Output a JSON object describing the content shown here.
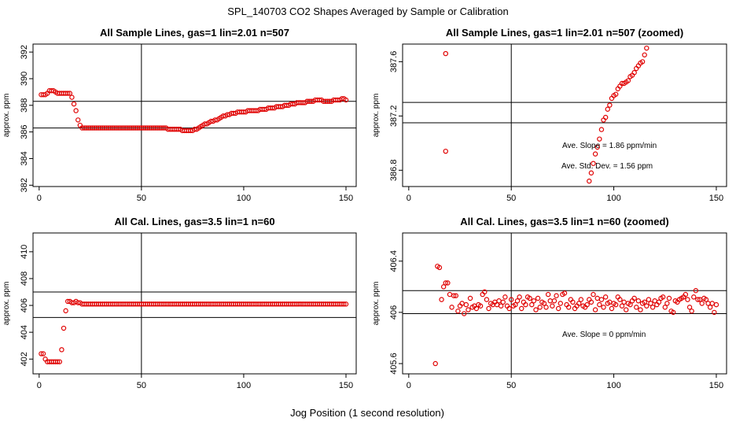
{
  "figure": {
    "suptitle": "SPL_140703  CO2 Shapes Averaged by Sample or Calibration",
    "xlabel": "Jog Position (1 second resolution)"
  },
  "colors": {
    "points": "#e00000",
    "axes": "#000000",
    "background": "#ffffff"
  },
  "chart_data": [
    {
      "type": "scatter",
      "title": "All Sample Lines, gas=1 lin=2.01 n=507",
      "ylabel": "approx. ppm",
      "xlim": [
        -3,
        155
      ],
      "ylim": [
        381.9,
        392.6
      ],
      "xticks": [
        0,
        50,
        100,
        150
      ],
      "yticks": [
        382,
        384,
        386,
        388,
        390,
        392
      ],
      "vline": 50,
      "hlines": [
        386.3,
        388.3
      ],
      "annotations": [],
      "x": [
        1,
        2,
        3,
        4,
        5,
        6,
        7,
        8,
        9,
        10,
        11,
        12,
        13,
        14,
        15,
        16,
        17,
        18,
        19,
        20,
        21,
        22,
        23,
        24,
        25,
        26,
        27,
        28,
        29,
        30,
        31,
        32,
        33,
        34,
        35,
        36,
        37,
        38,
        39,
        40,
        41,
        42,
        43,
        44,
        45,
        46,
        47,
        48,
        49,
        50,
        51,
        52,
        53,
        54,
        55,
        56,
        57,
        58,
        59,
        60,
        61,
        62,
        63,
        64,
        65,
        66,
        67,
        68,
        69,
        70,
        71,
        72,
        73,
        74,
        75,
        76,
        77,
        78,
        79,
        80,
        81,
        82,
        83,
        84,
        85,
        86,
        87,
        88,
        89,
        90,
        91,
        92,
        93,
        94,
        95,
        96,
        97,
        98,
        99,
        100,
        101,
        102,
        103,
        104,
        105,
        106,
        107,
        108,
        109,
        110,
        111,
        112,
        113,
        114,
        115,
        116,
        117,
        118,
        119,
        120,
        121,
        122,
        123,
        124,
        125,
        126,
        127,
        128,
        129,
        130,
        131,
        132,
        133,
        134,
        135,
        136,
        137,
        138,
        139,
        140,
        141,
        142,
        143,
        144,
        145,
        146,
        147,
        148,
        149,
        150
      ],
      "y": [
        388.8,
        388.8,
        388.8,
        388.9,
        389.1,
        389.1,
        389.1,
        389.0,
        388.9,
        388.9,
        388.9,
        388.9,
        388.9,
        388.9,
        388.9,
        388.6,
        388.1,
        387.6,
        386.9,
        386.5,
        386.3,
        386.3,
        386.3,
        386.3,
        386.3,
        386.3,
        386.3,
        386.3,
        386.3,
        386.3,
        386.3,
        386.3,
        386.3,
        386.3,
        386.3,
        386.3,
        386.3,
        386.3,
        386.3,
        386.3,
        386.3,
        386.3,
        386.3,
        386.3,
        386.3,
        386.3,
        386.3,
        386.3,
        386.3,
        386.3,
        386.3,
        386.3,
        386.3,
        386.3,
        386.3,
        386.3,
        386.3,
        386.3,
        386.3,
        386.3,
        386.3,
        386.3,
        386.2,
        386.2,
        386.2,
        386.2,
        386.2,
        386.2,
        386.2,
        386.1,
        386.1,
        386.1,
        386.1,
        386.1,
        386.1,
        386.2,
        386.2,
        386.3,
        386.4,
        386.5,
        386.6,
        386.6,
        386.7,
        386.8,
        386.8,
        386.9,
        386.9,
        387.0,
        387.1,
        387.2,
        387.2,
        387.3,
        387.3,
        387.4,
        387.4,
        387.4,
        387.5,
        387.5,
        387.5,
        387.5,
        387.5,
        387.6,
        387.6,
        387.6,
        387.6,
        387.6,
        387.6,
        387.7,
        387.7,
        387.7,
        387.7,
        387.8,
        387.8,
        387.8,
        387.8,
        387.9,
        387.9,
        387.9,
        387.9,
        388.0,
        388.0,
        388.0,
        388.1,
        388.1,
        388.1,
        388.2,
        388.2,
        388.2,
        388.2,
        388.2,
        388.3,
        388.3,
        388.3,
        388.3,
        388.4,
        388.4,
        388.4,
        388.4,
        388.3,
        388.3,
        388.3,
        388.3,
        388.3,
        388.4,
        388.4,
        388.4,
        388.4,
        388.5,
        388.5,
        388.4
      ]
    },
    {
      "type": "scatter",
      "title": "All Sample Lines, gas=1 lin=2.01 n=507 (zoomed)",
      "ylabel": "approx. ppm",
      "xlim": [
        -3,
        155
      ],
      "ylim": [
        386.68,
        387.73
      ],
      "xticks": [
        0,
        50,
        100,
        150
      ],
      "yticks": [
        386.8,
        387.2,
        387.6
      ],
      "vline": 50,
      "hlines": [
        387.3,
        387.15
      ],
      "annotations": [
        "Ave. Slope =  1.86  ppm/min",
        "Ave. Std. Dev. =  1.56  ppm"
      ],
      "x": [
        18,
        18,
        88,
        89,
        90,
        91,
        92,
        93,
        94,
        95,
        96,
        97,
        98,
        99,
        100,
        101,
        102,
        103,
        104,
        105,
        106,
        107,
        108,
        109,
        110,
        111,
        112,
        113,
        114,
        115,
        116
      ],
      "y": [
        387.66,
        386.94,
        386.72,
        386.78,
        386.85,
        386.92,
        386.97,
        387.03,
        387.1,
        387.17,
        387.19,
        387.25,
        387.28,
        387.33,
        387.35,
        387.36,
        387.4,
        387.42,
        387.44,
        387.44,
        387.45,
        387.46,
        387.49,
        387.5,
        387.52,
        387.55,
        387.57,
        387.59,
        387.6,
        387.65,
        387.7
      ]
    },
    {
      "type": "scatter",
      "title": "All Cal. Lines, gas=3.5 lin=1 n=60",
      "ylabel": "approx. ppm",
      "xlim": [
        -3,
        155
      ],
      "ylim": [
        400.9,
        411.4
      ],
      "xticks": [
        0,
        50,
        100,
        150
      ],
      "yticks": [
        402,
        404,
        406,
        408,
        410
      ],
      "vline": 50,
      "hlines": [
        407.0,
        405.1
      ],
      "annotations": [],
      "x": [
        1,
        2,
        3,
        4,
        5,
        6,
        7,
        8,
        9,
        10,
        11,
        12,
        13,
        14,
        15,
        16,
        17,
        18,
        19,
        20,
        21,
        22,
        23,
        24,
        25,
        26,
        27,
        28,
        29,
        30,
        31,
        32,
        33,
        34,
        35,
        36,
        37,
        38,
        39,
        40,
        41,
        42,
        43,
        44,
        45,
        46,
        47,
        48,
        49,
        50,
        51,
        52,
        53,
        54,
        55,
        56,
        57,
        58,
        59,
        60,
        61,
        62,
        63,
        64,
        65,
        66,
        67,
        68,
        69,
        70,
        71,
        72,
        73,
        74,
        75,
        76,
        77,
        78,
        79,
        80,
        81,
        82,
        83,
        84,
        85,
        86,
        87,
        88,
        89,
        90,
        91,
        92,
        93,
        94,
        95,
        96,
        97,
        98,
        99,
        100,
        101,
        102,
        103,
        104,
        105,
        106,
        107,
        108,
        109,
        110,
        111,
        112,
        113,
        114,
        115,
        116,
        117,
        118,
        119,
        120,
        121,
        122,
        123,
        124,
        125,
        126,
        127,
        128,
        129,
        130,
        131,
        132,
        133,
        134,
        135,
        136,
        137,
        138,
        139,
        140,
        141,
        142,
        143,
        144,
        145,
        146,
        147,
        148,
        149,
        150
      ],
      "y": [
        402.4,
        402.4,
        402.0,
        401.8,
        401.8,
        401.8,
        401.8,
        401.8,
        401.8,
        401.8,
        402.7,
        404.3,
        405.6,
        406.3,
        406.3,
        406.2,
        406.2,
        406.3,
        406.2,
        406.2,
        406.1,
        406.1,
        406.1,
        406.1,
        406.1,
        406.1,
        406.1,
        406.1,
        406.1,
        406.1,
        406.1,
        406.1,
        406.1,
        406.1,
        406.1,
        406.1,
        406.1,
        406.1,
        406.1,
        406.1,
        406.1,
        406.1,
        406.1,
        406.1,
        406.1,
        406.1,
        406.1,
        406.1,
        406.1,
        406.1,
        406.1,
        406.1,
        406.1,
        406.1,
        406.1,
        406.1,
        406.1,
        406.1,
        406.1,
        406.1,
        406.1,
        406.1,
        406.1,
        406.1,
        406.1,
        406.1,
        406.1,
        406.1,
        406.1,
        406.1,
        406.1,
        406.1,
        406.1,
        406.1,
        406.1,
        406.1,
        406.1,
        406.1,
        406.1,
        406.1,
        406.1,
        406.1,
        406.1,
        406.1,
        406.1,
        406.1,
        406.1,
        406.1,
        406.1,
        406.1,
        406.1,
        406.1,
        406.1,
        406.1,
        406.1,
        406.1,
        406.1,
        406.1,
        406.1,
        406.1,
        406.1,
        406.1,
        406.1,
        406.1,
        406.1,
        406.1,
        406.1,
        406.1,
        406.1,
        406.1,
        406.1,
        406.1,
        406.1,
        406.1,
        406.1,
        406.1,
        406.1,
        406.1,
        406.1,
        406.1,
        406.1,
        406.1,
        406.1,
        406.1,
        406.1,
        406.1,
        406.1,
        406.1,
        406.1,
        406.1,
        406.1,
        406.1,
        406.1,
        406.1,
        406.1,
        406.1,
        406.1,
        406.1,
        406.1,
        406.1,
        406.1,
        406.1,
        406.1,
        406.1,
        406.1,
        406.1,
        406.1,
        406.1,
        406.1,
        406.1
      ]
    },
    {
      "type": "scatter",
      "title": "All Cal. Lines, gas=3.5 lin=1 n=60 (zoomed)",
      "ylabel": "approx. ppm",
      "xlim": [
        -3,
        155
      ],
      "ylim": [
        405.52,
        406.62
      ],
      "xticks": [
        0,
        50,
        100,
        150
      ],
      "yticks": [
        405.6,
        406.0,
        406.4
      ],
      "vline": 50,
      "hlines": [
        406.17,
        405.99
      ],
      "annotations": [
        "Ave. Slope =  0  ppm/min"
      ],
      "x": [
        13,
        14,
        15,
        16,
        17,
        18,
        19,
        20,
        21,
        22,
        23,
        24,
        25,
        26,
        27,
        28,
        29,
        30,
        31,
        32,
        33,
        34,
        35,
        36,
        37,
        38,
        39,
        40,
        41,
        42,
        43,
        44,
        45,
        46,
        47,
        48,
        49,
        50,
        51,
        52,
        53,
        54,
        55,
        56,
        57,
        58,
        59,
        60,
        61,
        62,
        63,
        64,
        65,
        66,
        67,
        68,
        69,
        70,
        71,
        72,
        73,
        74,
        75,
        76,
        77,
        78,
        79,
        80,
        81,
        82,
        83,
        84,
        85,
        86,
        87,
        88,
        89,
        90,
        91,
        92,
        93,
        94,
        95,
        96,
        97,
        98,
        99,
        100,
        101,
        102,
        103,
        104,
        105,
        106,
        107,
        108,
        109,
        110,
        111,
        112,
        113,
        114,
        115,
        116,
        117,
        118,
        119,
        120,
        121,
        122,
        123,
        124,
        125,
        126,
        127,
        128,
        129,
        130,
        131,
        132,
        133,
        134,
        135,
        136,
        137,
        138,
        139,
        140,
        141,
        142,
        143,
        144,
        145,
        146,
        147,
        148,
        149,
        150
      ],
      "y": [
        405.6,
        406.36,
        406.35,
        406.1,
        406.2,
        406.23,
        406.23,
        406.14,
        406.04,
        406.13,
        406.13,
        406.01,
        406.05,
        406.07,
        405.99,
        406.06,
        406.02,
        406.11,
        406.04,
        406.05,
        406.03,
        406.06,
        406.05,
        406.14,
        406.16,
        406.1,
        406.03,
        406.07,
        406.06,
        406.08,
        406.06,
        406.09,
        406.05,
        406.08,
        406.12,
        406.05,
        406.03,
        406.1,
        406.05,
        406.06,
        406.09,
        406.12,
        406.03,
        406.08,
        406.06,
        406.12,
        406.11,
        406.06,
        406.09,
        406.02,
        406.11,
        406.04,
        406.08,
        406.07,
        406.04,
        406.14,
        406.09,
        406.05,
        406.09,
        406.13,
        406.03,
        406.07,
        406.14,
        406.15,
        406.06,
        406.04,
        406.1,
        406.08,
        406.03,
        406.05,
        406.07,
        406.1,
        406.05,
        406.04,
        406.06,
        406.1,
        406.08,
        406.14,
        406.02,
        406.11,
        406.06,
        406.1,
        406.04,
        406.12,
        406.07,
        406.08,
        406.03,
        406.07,
        406.06,
        406.12,
        406.1,
        406.05,
        406.08,
        406.02,
        406.07,
        406.06,
        406.09,
        406.11,
        406.04,
        406.09,
        406.02,
        406.07,
        406.08,
        406.05,
        406.1,
        406.07,
        406.04,
        406.09,
        406.06,
        406.08,
        406.11,
        406.12,
        406.04,
        406.07,
        406.11,
        406.01,
        406.0,
        406.09,
        406.08,
        406.1,
        406.11,
        406.12,
        406.14,
        406.1,
        406.04,
        406.01,
        406.12,
        406.17,
        406.1,
        406.1,
        406.07,
        406.11,
        406.1,
        406.07,
        406.04,
        406.07,
        406.0,
        406.06
      ]
    }
  ]
}
